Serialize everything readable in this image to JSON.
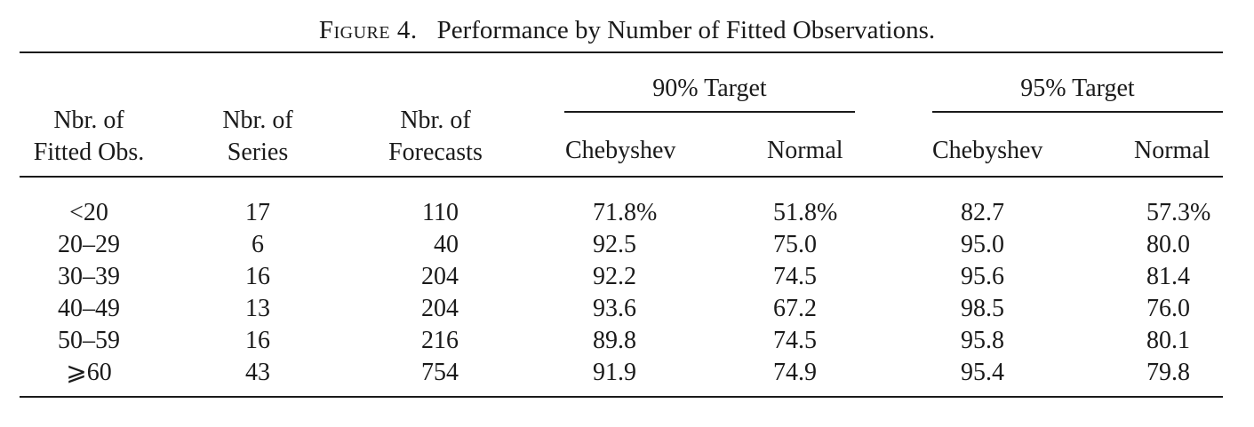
{
  "caption": {
    "label": "Figure 4.",
    "title": "Performance by Number of Fitted Observations."
  },
  "header": {
    "fitted_obs": [
      "Nbr. of",
      "Fitted Obs."
    ],
    "series": [
      "Nbr. of",
      "Series"
    ],
    "forecasts": [
      "Nbr. of",
      "Forecasts"
    ],
    "group_90": "90% Target",
    "group_95": "95% Target",
    "chebyshev_90": "Chebyshev",
    "normal_90": "Normal",
    "chebyshev_95": "Chebyshev",
    "normal_95": "Normal"
  },
  "rows": [
    {
      "obs": "<20",
      "series": "17",
      "forecasts": "110",
      "cheb90": "71.8%",
      "norm90": "51.8%",
      "cheb95": "82.7",
      "norm95": "57.3%"
    },
    {
      "obs": "20–29",
      "series": "6",
      "forecasts": "40",
      "cheb90": "92.5",
      "norm90": "75.0",
      "cheb95": "95.0",
      "norm95": "80.0"
    },
    {
      "obs": "30–39",
      "series": "16",
      "forecasts": "204",
      "cheb90": "92.2",
      "norm90": "74.5",
      "cheb95": "95.6",
      "norm95": "81.4"
    },
    {
      "obs": "40–49",
      "series": "13",
      "forecasts": "204",
      "cheb90": "93.6",
      "norm90": "67.2",
      "cheb95": "98.5",
      "norm95": "76.0"
    },
    {
      "obs": "50–59",
      "series": "16",
      "forecasts": "216",
      "cheb90": "89.8",
      "norm90": "74.5",
      "cheb95": "95.8",
      "norm95": "80.1"
    },
    {
      "obs": "⩾60",
      "series": "43",
      "forecasts": "754",
      "cheb90": "91.9",
      "norm90": "74.9",
      "cheb95": "95.4",
      "norm95": "79.8"
    }
  ]
}
